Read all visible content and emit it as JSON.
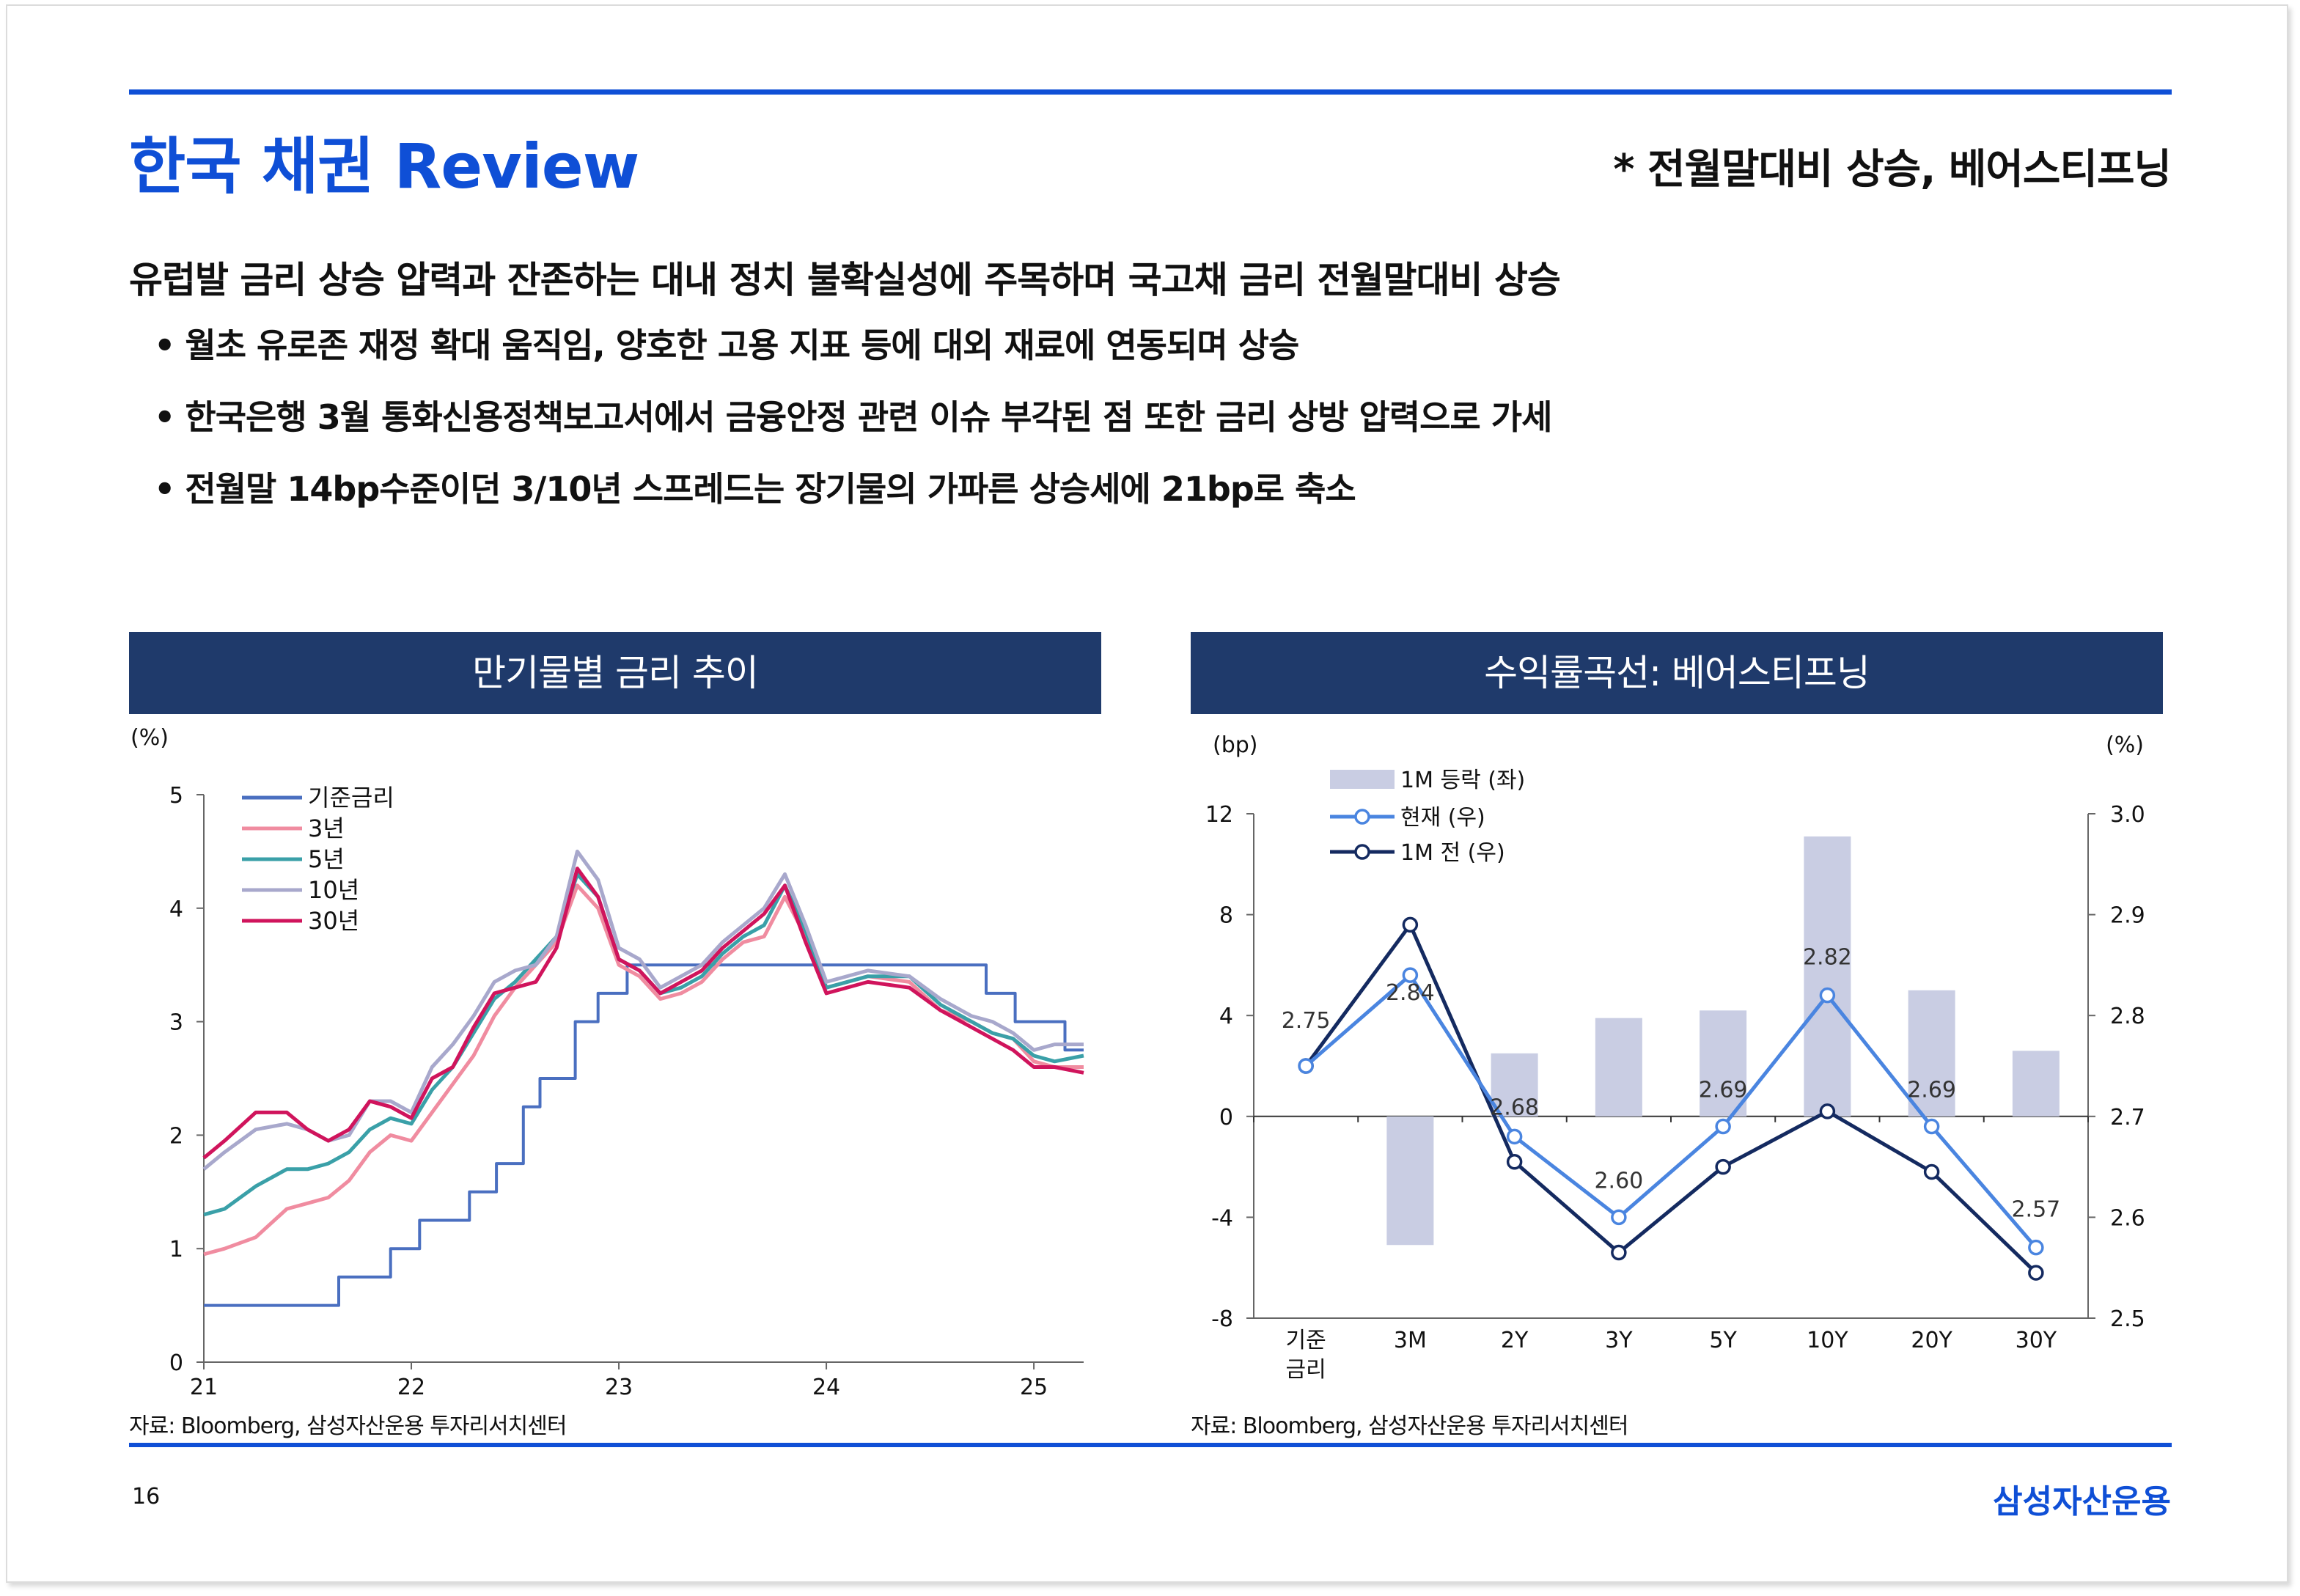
{
  "page": {
    "title": "한국 채권 Review",
    "subtitle": "* 전월말대비 상승, 베어스티프닝",
    "headline": "유럽발 금리 상승 압력과 잔존하는 대내 정치 불확실성에 주목하며 국고채 금리 전월말대비 상승",
    "bullets": [
      "월초 유로존 재정 확대 움직임, 양호한 고용 지표 등에 대외 재료에 연동되며 상승",
      "한국은행 3월 통화신용정책보고서에서 금융안정 관련 이슈 부각된 점 또한 금리 상방 압력으로 가세",
      "전월말 14bp수준이던 3/10년 스프레드는 장기물의 가파른 상승세에 21bp로 축소"
    ],
    "page_number": "16",
    "brand": "삼성자산운용",
    "accent_color": "#0f4fd6",
    "header_color": "#1f3a6b"
  },
  "charts": {
    "left": {
      "header": "만기물별 금리 추이",
      "source": "자료: Bloomberg, 삼성자산운용 투자리서치센터"
    },
    "right": {
      "header": "수익률곡선: 베어스티프닝",
      "source": "자료: Bloomberg, 삼성자산운용 투자리서치센터"
    }
  },
  "chart_data": [
    {
      "type": "line",
      "ylabel": "(%)",
      "ylim": [
        0,
        5
      ],
      "yticks": [
        "0",
        "1",
        "2",
        "3",
        "4",
        "5"
      ],
      "xticks": [
        "21",
        "22",
        "23",
        "24",
        "25"
      ],
      "xlim": [
        2021.0,
        2025.24
      ],
      "legend": "top-left",
      "series": [
        {
          "name": "기준금리",
          "color": "#4a6fc0",
          "x": [
            2021.0,
            2021.65,
            2021.65,
            2021.9,
            2021.9,
            2022.04,
            2022.04,
            2022.28,
            2022.28,
            2022.41,
            2022.41,
            2022.54,
            2022.54,
            2022.62,
            2022.62,
            2022.79,
            2022.79,
            2022.9,
            2022.9,
            2023.04,
            2023.04,
            2024.77,
            2024.77,
            2024.91,
            2024.91,
            2025.15,
            2025.15,
            2025.24
          ],
          "y": [
            0.5,
            0.5,
            0.75,
            0.75,
            1.0,
            1.0,
            1.25,
            1.25,
            1.5,
            1.5,
            1.75,
            1.75,
            2.25,
            2.25,
            2.5,
            2.5,
            3.0,
            3.0,
            3.25,
            3.25,
            3.5,
            3.5,
            3.25,
            3.25,
            3.0,
            3.0,
            2.75,
            2.75
          ]
        },
        {
          "name": "3년",
          "color": "#f08ca0",
          "x": [
            2021.0,
            2021.1,
            2021.25,
            2021.4,
            2021.5,
            2021.6,
            2021.7,
            2021.8,
            2021.9,
            2022.0,
            2022.1,
            2022.2,
            2022.3,
            2022.4,
            2022.5,
            2022.6,
            2022.7,
            2022.8,
            2022.9,
            2023.0,
            2023.1,
            2023.2,
            2023.3,
            2023.4,
            2023.5,
            2023.6,
            2023.7,
            2023.8,
            2023.9,
            2024.0,
            2024.2,
            2024.4,
            2024.55,
            2024.7,
            2024.8,
            2024.9,
            2025.0,
            2025.1,
            2025.24
          ],
          "y": [
            0.95,
            1.0,
            1.1,
            1.35,
            1.4,
            1.45,
            1.6,
            1.85,
            2.0,
            1.95,
            2.2,
            2.45,
            2.7,
            3.05,
            3.3,
            3.5,
            3.7,
            4.2,
            4.0,
            3.5,
            3.4,
            3.2,
            3.25,
            3.35,
            3.55,
            3.7,
            3.75,
            4.1,
            3.75,
            3.3,
            3.4,
            3.35,
            3.1,
            3.0,
            2.9,
            2.85,
            2.65,
            2.6,
            2.6
          ]
        },
        {
          "name": "5년",
          "color": "#3aa0a8",
          "x": [
            2021.0,
            2021.1,
            2021.25,
            2021.4,
            2021.5,
            2021.6,
            2021.7,
            2021.8,
            2021.9,
            2022.0,
            2022.1,
            2022.2,
            2022.3,
            2022.4,
            2022.5,
            2022.6,
            2022.7,
            2022.8,
            2022.9,
            2023.0,
            2023.1,
            2023.2,
            2023.3,
            2023.4,
            2023.5,
            2023.6,
            2023.7,
            2023.8,
            2023.9,
            2024.0,
            2024.2,
            2024.4,
            2024.55,
            2024.7,
            2024.8,
            2024.9,
            2025.0,
            2025.1,
            2025.24
          ],
          "y": [
            1.3,
            1.35,
            1.55,
            1.7,
            1.7,
            1.75,
            1.85,
            2.05,
            2.15,
            2.1,
            2.4,
            2.6,
            2.9,
            3.2,
            3.35,
            3.55,
            3.75,
            4.3,
            4.1,
            3.55,
            3.45,
            3.25,
            3.3,
            3.4,
            3.6,
            3.75,
            3.85,
            4.2,
            3.8,
            3.3,
            3.4,
            3.4,
            3.15,
            3.0,
            2.9,
            2.85,
            2.7,
            2.65,
            2.7
          ]
        },
        {
          "name": "10년",
          "color": "#a8a8cc",
          "x": [
            2021.0,
            2021.1,
            2021.25,
            2021.4,
            2021.5,
            2021.6,
            2021.7,
            2021.8,
            2021.9,
            2022.0,
            2022.1,
            2022.2,
            2022.3,
            2022.4,
            2022.5,
            2022.6,
            2022.7,
            2022.8,
            2022.9,
            2023.0,
            2023.1,
            2023.2,
            2023.3,
            2023.4,
            2023.5,
            2023.6,
            2023.7,
            2023.8,
            2023.9,
            2024.0,
            2024.2,
            2024.4,
            2024.55,
            2024.7,
            2024.8,
            2024.9,
            2025.0,
            2025.1,
            2025.24
          ],
          "y": [
            1.7,
            1.85,
            2.05,
            2.1,
            2.05,
            1.95,
            2.0,
            2.3,
            2.3,
            2.2,
            2.6,
            2.8,
            3.05,
            3.35,
            3.45,
            3.5,
            3.75,
            4.5,
            4.25,
            3.65,
            3.55,
            3.3,
            3.4,
            3.5,
            3.7,
            3.85,
            4.0,
            4.3,
            3.85,
            3.35,
            3.45,
            3.4,
            3.2,
            3.05,
            3.0,
            2.9,
            2.75,
            2.8,
            2.8
          ]
        },
        {
          "name": "30년",
          "color": "#d0145c",
          "x": [
            2021.0,
            2021.1,
            2021.25,
            2021.4,
            2021.5,
            2021.6,
            2021.7,
            2021.8,
            2021.9,
            2022.0,
            2022.1,
            2022.2,
            2022.3,
            2022.4,
            2022.5,
            2022.6,
            2022.7,
            2022.8,
            2022.9,
            2023.0,
            2023.1,
            2023.2,
            2023.3,
            2023.4,
            2023.5,
            2023.6,
            2023.7,
            2023.8,
            2023.9,
            2024.0,
            2024.2,
            2024.4,
            2024.55,
            2024.7,
            2024.8,
            2024.9,
            2025.0,
            2025.1,
            2025.24
          ],
          "y": [
            1.8,
            1.95,
            2.2,
            2.2,
            2.05,
            1.95,
            2.05,
            2.3,
            2.25,
            2.15,
            2.5,
            2.6,
            2.95,
            3.25,
            3.3,
            3.35,
            3.65,
            4.35,
            4.1,
            3.55,
            3.45,
            3.25,
            3.35,
            3.45,
            3.65,
            3.8,
            3.95,
            4.2,
            3.7,
            3.25,
            3.35,
            3.3,
            3.1,
            2.95,
            2.85,
            2.75,
            2.6,
            2.6,
            2.55
          ]
        }
      ]
    },
    {
      "type": "bar+line",
      "categories": [
        "기준\n금리",
        "3M",
        "2Y",
        "3Y",
        "5Y",
        "10Y",
        "20Y",
        "30Y"
      ],
      "left_axis": {
        "label": "(bp)",
        "ylim": [
          -8,
          12
        ],
        "ticks": [
          "-8",
          "-4",
          "0",
          "4",
          "8",
          "12"
        ]
      },
      "right_axis": {
        "label": "(%)",
        "ylim": [
          2.5,
          3.0
        ],
        "ticks": [
          "2.5",
          "2.6",
          "2.7",
          "2.8",
          "2.9",
          "3.0"
        ]
      },
      "legend": "top-left",
      "series": [
        {
          "name": "1M 등락 (좌)",
          "kind": "bar",
          "axis": "left",
          "color": "#c9cde3",
          "values": [
            0,
            -5.1,
            2.5,
            3.9,
            4.2,
            11.1,
            5.0,
            2.6
          ]
        },
        {
          "name": "현재 (우)",
          "kind": "line",
          "axis": "right",
          "color": "#4a85e0",
          "values": [
            2.75,
            2.84,
            2.68,
            2.6,
            2.69,
            2.82,
            2.69,
            2.57
          ]
        },
        {
          "name": "1M 전 (우)",
          "kind": "line",
          "axis": "right",
          "color": "#142a60",
          "values": [
            2.75,
            2.89,
            2.655,
            2.565,
            2.65,
            2.705,
            2.645,
            2.545
          ]
        }
      ],
      "data_labels": [
        "2.75",
        "2.84",
        "2.68",
        "2.60",
        "2.69",
        "2.82",
        "2.69",
        "2.57"
      ]
    }
  ]
}
